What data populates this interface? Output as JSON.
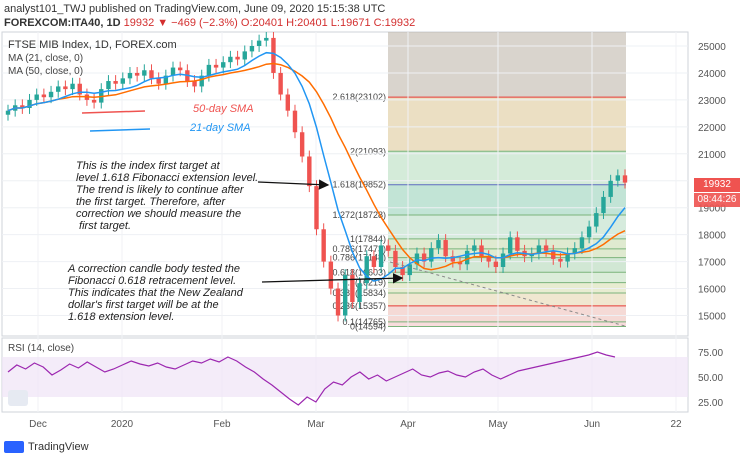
{
  "header": {
    "line1": "analyst101_TWJ published on TradingView.com, June 09, 2020 15:15:38 UTC",
    "line2_prefix": "FOREXCOM:ITA40, 1D",
    "line2_values": "19932 ▼ −469 (−2.3%) O:20401 H:20401 L:19671 C:19932"
  },
  "chart": {
    "title": "FTSE MIB Index, 1D, FOREX.com",
    "ma21_label": "MA (21, close, 0)",
    "ma50_label": "MA (50, close, 0)",
    "legend_50": "50-day SMA",
    "legend_21": "21-day SMA",
    "price_ticks": [
      "25000",
      "24000",
      "23000",
      "22000",
      "21000",
      "20000",
      "19000",
      "18000",
      "17000",
      "16000",
      "15000"
    ],
    "last_price": "19932",
    "countdown": "08:44:26",
    "x_ticks": [
      "Dec",
      "2020",
      "Feb",
      "Mar",
      "Apr",
      "May",
      "Jun",
      "22"
    ],
    "colors": {
      "up": "#26a69a",
      "down": "#ef5350",
      "ma21": "#2196f3",
      "ma50": "#ff6d00",
      "rsi": "#9c27b0"
    }
  },
  "fib_levels": [
    {
      "label": "2.618(23102)",
      "price": 23102
    },
    {
      "label": "2(21093)",
      "price": 21093
    },
    {
      "label": "1.618(19852)",
      "price": 19852
    },
    {
      "label": "1.272(18728)",
      "price": 18728
    },
    {
      "label": "1(17844)",
      "price": 17844
    },
    {
      "label": "0.786(17473)",
      "price": 17473
    },
    {
      "label": "0.786(17148)",
      "price": 17148
    },
    {
      "label": "0.618(16603)",
      "price": 16603
    },
    {
      "label": "0.5(16219)",
      "price": 16219
    },
    {
      "label": "0.382(15834)",
      "price": 15834
    },
    {
      "label": "0.236(15357)",
      "price": 15357
    },
    {
      "label": "0.1(14765)",
      "price": 14765
    },
    {
      "label": "0(14594)",
      "price": 14594
    }
  ],
  "notes": {
    "top": "This is the index first target at\nlevel 1.618 Fibonacci extension level.\nThe trend is likely to continue after\nthe first target. Therefore, after\ncorrection we should measure the\n first target.",
    "bottom": "A correction candle body tested the\nFibonacci 0.618 retracement level.\nThis indicates that the New Zealand\ndollar's first target will be at the\n1.618 extension level."
  },
  "rsi": {
    "label": "RSI (14, close)",
    "ticks": [
      "75.00",
      "50.00",
      "25.00"
    ]
  },
  "footer": {
    "brand": "TradingView"
  }
}
